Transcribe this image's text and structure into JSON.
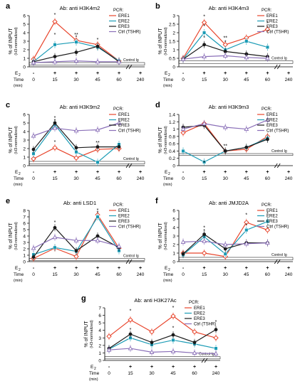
{
  "common": {
    "ylabel": "% of INPUT",
    "ylabel2": "(H3-normalized)",
    "e2_label": "E",
    "e2_sub": "2",
    "time_label": "Time",
    "time_unit": "(min)",
    "e2_signs": [
      "-",
      "+",
      "+",
      "+",
      "+",
      "+"
    ],
    "time_ticks": [
      "0",
      "15",
      "30",
      "45",
      "60",
      "240"
    ],
    "control_label": "Control Ig",
    "legend_title": "PCR:",
    "series_names": [
      "ERE1",
      "ERE2",
      "ERE3",
      "Ctrl (TSHR)"
    ],
    "colors": {
      "ERE1": "#e8452c",
      "ERE2": "#1a9bb5",
      "ERE3": "#1a1a1a",
      "Ctrl (TSHR)": "#8a6fb8"
    }
  },
  "chart_data": [
    {
      "panel": "a",
      "type": "line",
      "title": "Ab: anti H3K4m2",
      "ylim": [
        0,
        6
      ],
      "yticks": [
        0,
        1,
        2,
        3,
        4,
        5,
        6
      ],
      "control_band": [
        0.2,
        0.5
      ],
      "legend_position": "top-right",
      "categories": [
        "0",
        "15",
        "30",
        "45",
        "60",
        "240"
      ],
      "series": [
        {
          "name": "ERE1",
          "values": [
            0.9,
            5.3,
            3.1,
            2.6,
            0.7,
            null
          ]
        },
        {
          "name": "ERE2",
          "values": [
            0.6,
            2.6,
            2.9,
            2.3,
            0.7,
            null
          ]
        },
        {
          "name": "ERE3",
          "values": [
            0.6,
            1.2,
            1.7,
            2.4,
            0.6,
            null
          ]
        },
        {
          "name": "Ctrl (TSHR)",
          "values": [
            0.5,
            0.6,
            0.7,
            0.6,
            0.6,
            null
          ]
        }
      ],
      "stars": [
        [
          1,
          5.9,
          "*"
        ],
        [
          1,
          3.6,
          "*"
        ],
        [
          2,
          3.6,
          "**"
        ],
        [
          2,
          3.3,
          "*"
        ],
        [
          3,
          3.0,
          "*"
        ]
      ]
    },
    {
      "panel": "b",
      "type": "line",
      "title": "Ab: anti H3K4m3",
      "ylim": [
        0,
        3
      ],
      "yticks": [
        0,
        0.5,
        1,
        1.5,
        2,
        2.5,
        3
      ],
      "control_band": [
        0.2,
        0.35
      ],
      "legend_position": "top-right",
      "categories": [
        "0",
        "15",
        "30",
        "45",
        "60",
        "240"
      ],
      "series": [
        {
          "name": "ERE1",
          "values": [
            0.5,
            2.6,
            1.3,
            1.7,
            2.2,
            null
          ]
        },
        {
          "name": "ERE2",
          "values": [
            0.45,
            2.0,
            1.0,
            1.5,
            1.15,
            null
          ]
        },
        {
          "name": "ERE3",
          "values": [
            0.45,
            1.3,
            0.9,
            0.75,
            0.6,
            null
          ]
        },
        {
          "name": "Ctrl (TSHR)",
          "values": [
            0.45,
            0.6,
            0.65,
            0.55,
            0.5,
            null
          ]
        }
      ],
      "stars": [
        [
          1,
          2.85,
          "*"
        ],
        [
          1,
          2.3,
          "*"
        ],
        [
          1,
          1.6,
          "*"
        ],
        [
          2,
          1.6,
          "**"
        ],
        [
          2,
          1.35,
          "*"
        ],
        [
          4,
          2.45,
          "*"
        ]
      ]
    },
    {
      "panel": "c",
      "type": "line",
      "title": "Ab: anti H3K9m2",
      "ylim": [
        0,
        6
      ],
      "yticks": [
        0,
        1,
        2,
        3,
        4,
        5,
        6
      ],
      "control_band": [
        0.2,
        0.5
      ],
      "legend_position": "top-right",
      "categories": [
        "0",
        "15",
        "30",
        "45",
        "60",
        "240"
      ],
      "series": [
        {
          "name": "ERE1",
          "values": [
            0.8,
            2.1,
            0.9,
            1.9,
            2.0,
            null
          ]
        },
        {
          "name": "ERE2",
          "values": [
            1.4,
            4.8,
            1.6,
            0.4,
            2.5,
            null
          ]
        },
        {
          "name": "ERE3",
          "values": [
            1.9,
            5.0,
            2.1,
            2.2,
            2.2,
            null
          ]
        },
        {
          "name": "Ctrl (TSHR)",
          "values": [
            3.5,
            4.4,
            4.1,
            4.2,
            5.0,
            null
          ]
        }
      ],
      "stars": [
        [
          1,
          5.4,
          "*"
        ],
        [
          1,
          5.1,
          "*"
        ],
        [
          1,
          2.6,
          "*"
        ],
        [
          3,
          2.5,
          "**"
        ]
      ]
    },
    {
      "panel": "d",
      "type": "line",
      "title": "Ab: anti H3K9m3",
      "ylim": [
        0,
        1.4
      ],
      "yticks": [
        0,
        0.2,
        0.4,
        0.6,
        0.8,
        1,
        1.2,
        1.4
      ],
      "control_band": [
        0.28,
        0.33
      ],
      "legend_position": "top-right",
      "categories": [
        "0",
        "15",
        "30",
        "45",
        "60",
        "240"
      ],
      "series": [
        {
          "name": "ERE1",
          "values": [
            0.9,
            1.15,
            0.4,
            0.45,
            0.8,
            null
          ]
        },
        {
          "name": "ERE2",
          "values": [
            0.4,
            0.1,
            0.4,
            0.5,
            0.75,
            null
          ]
        },
        {
          "name": "ERE3",
          "values": [
            1.05,
            1.1,
            0.4,
            0.5,
            0.72,
            null
          ]
        },
        {
          "name": "Ctrl (TSHR)",
          "values": [
            1.0,
            1.15,
            1.05,
            1.0,
            1.25,
            null
          ]
        }
      ],
      "stars": [
        [
          2,
          0.5,
          "**"
        ],
        [
          1,
          0.04,
          "*"
        ]
      ]
    },
    {
      "panel": "e",
      "type": "line",
      "title": "Ab: anti LSD1",
      "ylim": [
        0,
        8
      ],
      "yticks": [
        0,
        1,
        2,
        3,
        4,
        5,
        6,
        7,
        8
      ],
      "control_band": [
        0.2,
        0.5
      ],
      "legend_position": "top-right",
      "categories": [
        "0",
        "15",
        "30",
        "45",
        "60",
        "240"
      ],
      "series": [
        {
          "name": "ERE1",
          "values": [
            0.5,
            2.1,
            0.8,
            7.3,
            2.1,
            null
          ]
        },
        {
          "name": "ERE2",
          "values": [
            1.1,
            2.2,
            1.6,
            7.0,
            1.7,
            null
          ]
        },
        {
          "name": "ERE3",
          "values": [
            0.7,
            5.3,
            1.7,
            4.0,
            2.2,
            null
          ]
        },
        {
          "name": "Ctrl (TSHR)",
          "values": [
            2.1,
            3.8,
            3.3,
            3.3,
            2.4,
            null
          ]
        }
      ],
      "stars": [
        [
          1,
          5.9,
          "*"
        ],
        [
          3,
          7.8,
          "*"
        ],
        [
          3,
          7.4,
          "*"
        ]
      ]
    },
    {
      "panel": "f",
      "type": "line",
      "title": "Ab: anti JMJD2A",
      "ylim": [
        0,
        6
      ],
      "yticks": [
        0,
        1,
        2,
        3,
        4,
        5,
        6
      ],
      "control_band": [
        0.2,
        0.5
      ],
      "legend_position": "top-right",
      "categories": [
        "0",
        "15",
        "30",
        "45",
        "60",
        "240"
      ],
      "series": [
        {
          "name": "ERE1",
          "values": [
            1.0,
            1.0,
            0.6,
            4.6,
            3.7,
            null
          ]
        },
        {
          "name": "ERE2",
          "values": [
            0.8,
            2.9,
            0.9,
            3.7,
            4.7,
            null
          ]
        },
        {
          "name": "ERE3",
          "values": [
            0.9,
            3.2,
            1.5,
            2.2,
            2.2,
            null
          ]
        },
        {
          "name": "Ctrl (TSHR)",
          "values": [
            2.3,
            2.4,
            2.0,
            2.1,
            2.2,
            null
          ]
        }
      ],
      "stars": [
        [
          1,
          3.8,
          "*"
        ],
        [
          1,
          3.4,
          "*"
        ],
        [
          3,
          5.3,
          "*"
        ],
        [
          3,
          4.1,
          "*"
        ],
        [
          4,
          5.4,
          "*"
        ]
      ]
    },
    {
      "panel": "g",
      "type": "line",
      "title": "Ab: anti H3K27Ac",
      "ylim": [
        0,
        7
      ],
      "yticks": [
        0,
        1,
        2,
        3,
        4,
        5,
        6,
        7
      ],
      "control_band": [
        0.2,
        0.5
      ],
      "legend_position": "top-right",
      "categories": [
        "0",
        "15",
        "30",
        "45",
        "60",
        "240"
      ],
      "series": [
        {
          "name": "ERE1",
          "values": [
            3.2,
            5.4,
            3.8,
            5.9,
            3.8,
            3.0
          ]
        },
        {
          "name": "ERE2",
          "values": [
            1.5,
            3.0,
            2.1,
            2.7,
            2.2,
            1.6
          ]
        },
        {
          "name": "ERE3",
          "values": [
            1.6,
            3.5,
            2.4,
            3.4,
            2.4,
            4.1
          ]
        },
        {
          "name": "Ctrl (TSHR)",
          "values": [
            1.4,
            1.6,
            1.1,
            1.2,
            1.0,
            0.9
          ]
        }
      ],
      "stars": [
        [
          1,
          6.4,
          "*"
        ],
        [
          3,
          6.8,
          "*"
        ],
        [
          5,
          4.9,
          "*"
        ],
        [
          1,
          3.9,
          "*"
        ],
        [
          3,
          4.1,
          "*"
        ]
      ]
    }
  ]
}
